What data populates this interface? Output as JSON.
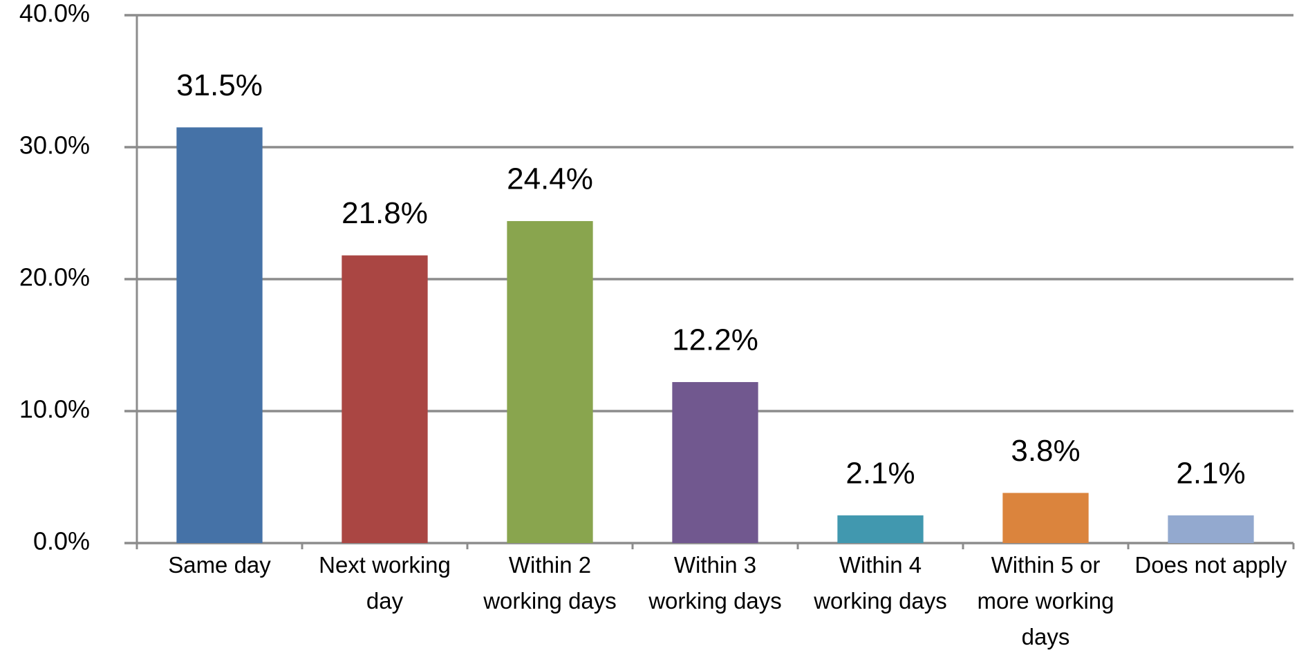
{
  "chart_data": {
    "type": "bar",
    "categories": [
      "Same day",
      "Next working day",
      "Within 2 working days",
      "Within 3 working days",
      "Within 4 working days",
      "Within 5 or more working days",
      "Does not apply"
    ],
    "values": [
      31.5,
      21.8,
      24.4,
      12.2,
      2.1,
      3.8,
      2.1
    ],
    "value_labels": [
      "31.5%",
      "21.8%",
      "24.4%",
      "12.2%",
      "2.1%",
      "3.8%",
      "2.1%"
    ],
    "colors": [
      "#4572a7",
      "#aa4643",
      "#89a54e",
      "#71588f",
      "#4198af",
      "#db843d",
      "#93a9cf"
    ],
    "ylim": [
      0,
      40
    ],
    "yticks": [
      {
        "value": 0,
        "label": "0.0%"
      },
      {
        "value": 10,
        "label": "10.0%"
      },
      {
        "value": 20,
        "label": "20.0%"
      },
      {
        "value": 30,
        "label": "30.0%"
      },
      {
        "value": 40,
        "label": "40.0%"
      }
    ],
    "grid": true
  }
}
